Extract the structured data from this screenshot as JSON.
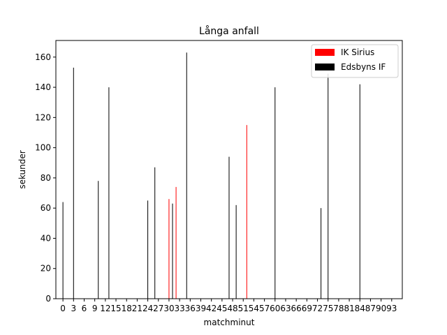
{
  "chart_data": {
    "type": "bar",
    "title": "Långa anfall",
    "xlabel": "matchminut",
    "ylabel": "sekunder",
    "xlim": [
      -2,
      96
    ],
    "ylim": [
      0,
      171
    ],
    "yticks": [
      0,
      20,
      40,
      60,
      80,
      100,
      120,
      140,
      160
    ],
    "xticks": [
      0,
      3,
      6,
      9,
      12,
      15,
      18,
      21,
      24,
      27,
      30,
      33,
      36,
      39,
      42,
      45,
      48,
      51,
      54,
      57,
      60,
      63,
      66,
      69,
      72,
      75,
      78,
      81,
      84,
      87,
      90,
      93
    ],
    "xtick_labels": [
      "0",
      "3",
      "6",
      "9",
      "12",
      "15",
      "18",
      "21",
      "24",
      "27",
      "30",
      "33",
      "36",
      "39",
      "42",
      "45",
      "48",
      "51",
      "54",
      "57",
      "60",
      "63",
      "66",
      "69",
      "72",
      "75",
      "78",
      "81",
      "84",
      "87",
      "90",
      "93"
    ],
    "legend_position": "top-right",
    "series": [
      {
        "name": "IK Sirius",
        "color": "#ff0000",
        "points": [
          {
            "x": 30,
            "y": 66
          },
          {
            "x": 32,
            "y": 74
          },
          {
            "x": 52,
            "y": 115
          }
        ]
      },
      {
        "name": "Edsbyns IF",
        "color": "#000000",
        "points": [
          {
            "x": 0,
            "y": 64
          },
          {
            "x": 3,
            "y": 153
          },
          {
            "x": 10,
            "y": 78
          },
          {
            "x": 13,
            "y": 140
          },
          {
            "x": 24,
            "y": 65
          },
          {
            "x": 26,
            "y": 87
          },
          {
            "x": 31,
            "y": 63
          },
          {
            "x": 35,
            "y": 163
          },
          {
            "x": 47,
            "y": 94
          },
          {
            "x": 49,
            "y": 62
          },
          {
            "x": 60,
            "y": 140
          },
          {
            "x": 73,
            "y": 60
          },
          {
            "x": 75,
            "y": 149
          },
          {
            "x": 84,
            "y": 142
          }
        ]
      }
    ]
  }
}
